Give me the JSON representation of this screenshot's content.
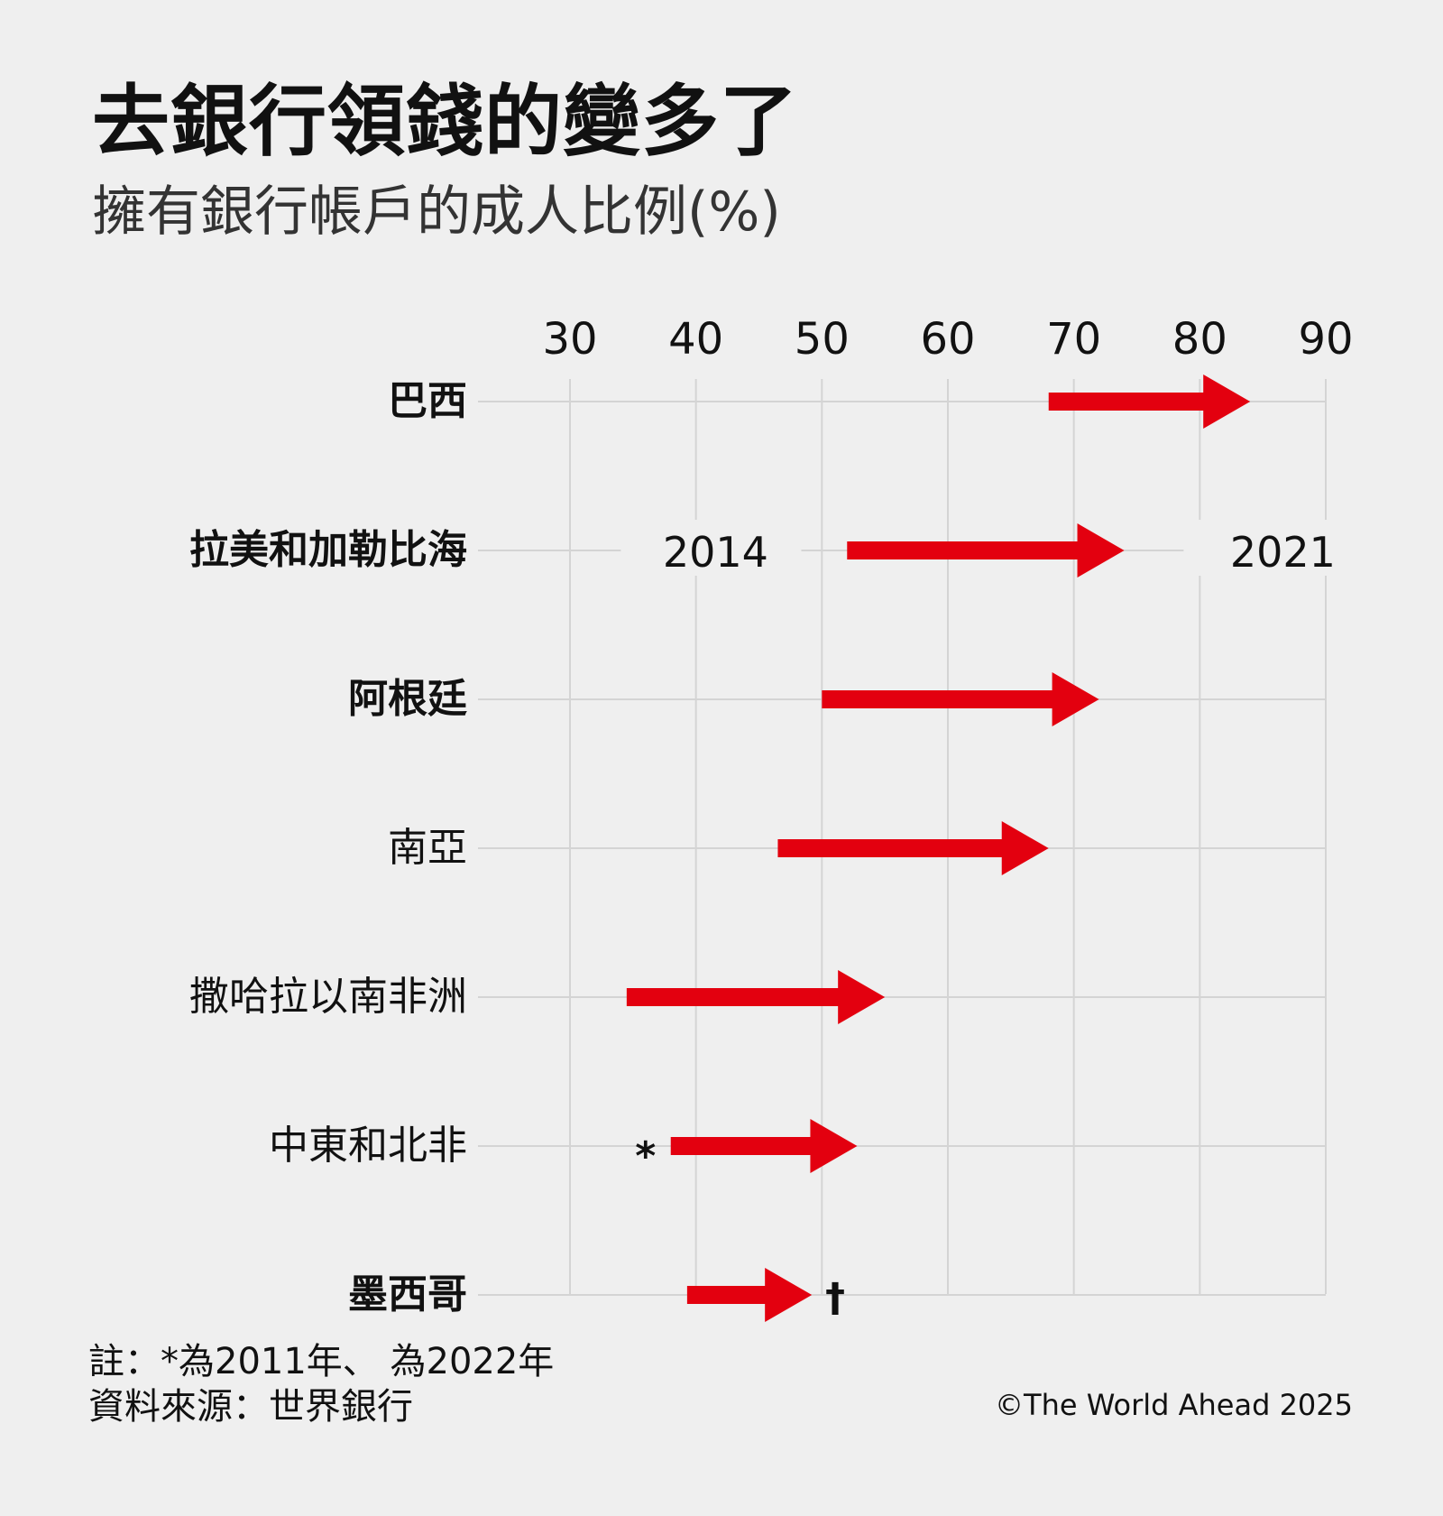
{
  "title": "去銀行領錢的變多了",
  "subtitle": "擁有銀行帳戶的成人比例(%)",
  "notes": {
    "line1": "註：*為2011年、 為2022年",
    "line2": "資料來源：世界銀行"
  },
  "credit": "©The World Ahead 2025",
  "colors": {
    "arrow": "#e3000f",
    "grid": "#d4d4d4",
    "background": "#efefef"
  },
  "chart_data": {
    "type": "arrow",
    "xlim": [
      30,
      90
    ],
    "x_ticks": [
      "30",
      "40",
      "50",
      "60",
      "70",
      "80",
      "90"
    ],
    "year_labels": {
      "start": "2014",
      "end": "2021"
    },
    "rows": [
      {
        "label": "巴西",
        "bold": true,
        "start": 68,
        "end": 84,
        "marker": ""
      },
      {
        "label": "拉美和加勒比海",
        "bold": true,
        "start": 52,
        "end": 74,
        "marker": ""
      },
      {
        "label": "阿根廷",
        "bold": true,
        "start": 50,
        "end": 72,
        "marker": ""
      },
      {
        "label": "南亞",
        "bold": false,
        "start": 46.5,
        "end": 68,
        "marker": ""
      },
      {
        "label": "撒哈拉以南非洲",
        "bold": false,
        "start": 34.5,
        "end": 55,
        "marker": ""
      },
      {
        "label": "中東和北非",
        "bold": false,
        "start": 38,
        "end": 52.8,
        "marker": "*"
      },
      {
        "label": "墨西哥",
        "bold": true,
        "start": 39.3,
        "end": 49.2,
        "marker": "†"
      }
    ]
  }
}
